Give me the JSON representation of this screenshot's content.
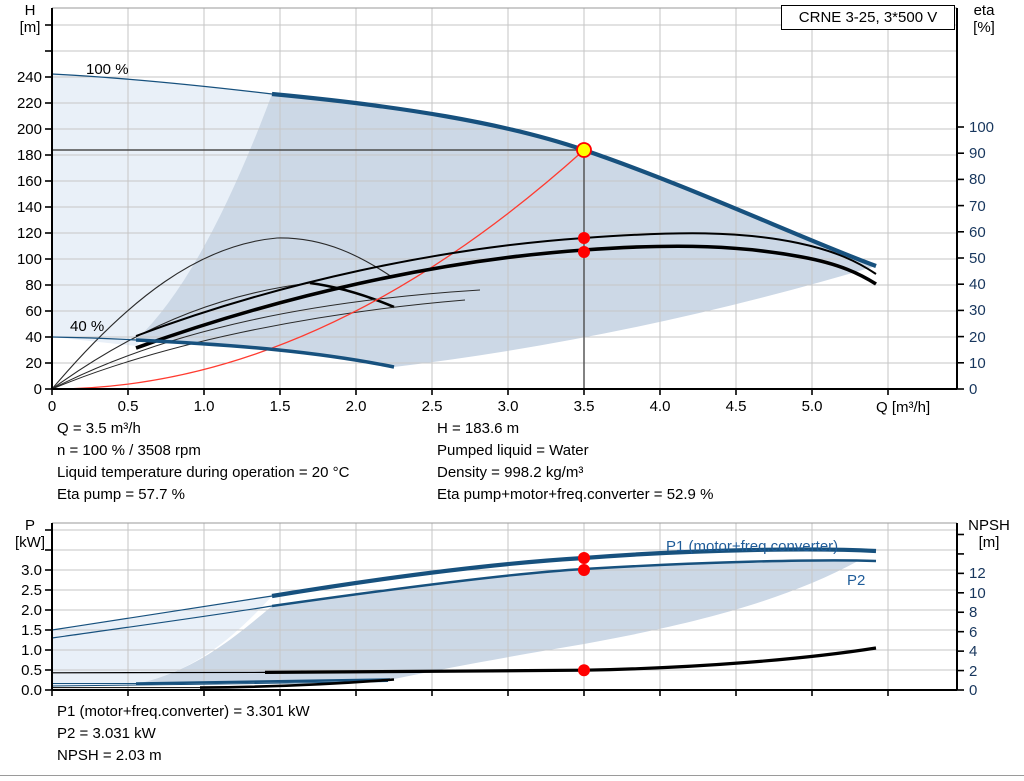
{
  "title_box": {
    "label": "CRNE 3-25, 3*500 V"
  },
  "colors": {
    "curve_blue": "#17517E",
    "label_blue": "#1F5C99",
    "right_axis_numbers": "#17365D",
    "shade_light": "#E9F0F8",
    "shade_dark": "#CCD8E6",
    "marker_red": "#FF0000",
    "marker_yellow": "#FFFF00",
    "system_curve_red": "#FF3B30",
    "crosshair_gray": "#4D4D4D"
  },
  "top_chart": {
    "axis_left": {
      "title": "H",
      "unit": "[m]"
    },
    "axis_right": {
      "title": "eta",
      "unit": "[%]"
    },
    "axis_x": {
      "unit_label": "Q [m³/h]"
    },
    "curve_labels": {
      "full_speed": "100 %",
      "min_speed": "40 %"
    },
    "h_ticks": [
      [
        0,
        "0"
      ],
      [
        20,
        "20"
      ],
      [
        40,
        "40"
      ],
      [
        60,
        "60"
      ],
      [
        80,
        "80"
      ],
      [
        100,
        "100"
      ],
      [
        120,
        "120"
      ],
      [
        140,
        "140"
      ],
      [
        160,
        "160"
      ],
      [
        180,
        "180"
      ],
      [
        200,
        "200"
      ],
      [
        220,
        "220"
      ],
      [
        240,
        "240"
      ],
      [
        260,
        ""
      ],
      [
        280,
        ""
      ]
    ],
    "eta_ticks": [
      [
        0,
        "0"
      ],
      [
        10,
        "10"
      ],
      [
        20,
        "20"
      ],
      [
        30,
        "30"
      ],
      [
        40,
        "40"
      ],
      [
        50,
        "50"
      ],
      [
        60,
        "60"
      ],
      [
        70,
        "70"
      ],
      [
        80,
        "80"
      ],
      [
        90,
        "90"
      ],
      [
        100,
        "100"
      ]
    ],
    "x_ticks": [
      [
        0,
        "0"
      ],
      [
        0.5,
        "0.5"
      ],
      [
        1,
        "1.0"
      ],
      [
        1.5,
        "1.5"
      ],
      [
        2,
        "2.0"
      ],
      [
        2.5,
        "2.5"
      ],
      [
        3,
        "3.0"
      ],
      [
        3.5,
        "3.5"
      ],
      [
        4,
        "4.0"
      ],
      [
        4.5,
        "4.5"
      ],
      [
        5,
        "5.0"
      ],
      [
        5.5,
        ""
      ]
    ]
  },
  "bottom_chart": {
    "axis_left": {
      "title": "P",
      "unit": "[kW]"
    },
    "axis_right": {
      "title": "NPSH",
      "unit": "[m]"
    },
    "labels": {
      "p1": "P1 (motor+freq.converter)",
      "p2": "P2"
    },
    "p_ticks": [
      [
        0,
        "0.0"
      ],
      [
        0.5,
        "0.5"
      ],
      [
        1,
        "1.0"
      ],
      [
        1.5,
        "1.5"
      ],
      [
        2,
        "2.0"
      ],
      [
        2.5,
        "2.5"
      ],
      [
        3,
        "3.0"
      ],
      [
        3.5,
        ""
      ],
      [
        4,
        ""
      ]
    ],
    "npsh_ticks": [
      [
        0,
        "0"
      ],
      [
        2,
        "2"
      ],
      [
        4,
        "4"
      ],
      [
        6,
        "6"
      ],
      [
        8,
        "8"
      ],
      [
        10,
        "10"
      ],
      [
        12,
        "12"
      ],
      [
        14,
        ""
      ],
      [
        16,
        ""
      ]
    ],
    "x_ticks": [
      [
        0,
        ""
      ],
      [
        0.5,
        ""
      ],
      [
        1,
        ""
      ],
      [
        1.5,
        ""
      ],
      [
        2,
        ""
      ],
      [
        2.5,
        ""
      ],
      [
        3,
        ""
      ],
      [
        3.5,
        ""
      ],
      [
        4,
        ""
      ],
      [
        4.5,
        ""
      ],
      [
        5,
        ""
      ],
      [
        5.5,
        ""
      ]
    ]
  },
  "annotations_top": {
    "left": [
      "Q = 3.5 m³/h",
      "n = 100 % / 3508 rpm",
      "Liquid temperature during operation = 20 °C",
      "Eta pump = 57.7 %"
    ],
    "right": [
      "H = 183.6 m",
      "Pumped liquid = Water",
      "Density = 998.2 kg/m³",
      "Eta pump+motor+freq.converter = 52.9 %"
    ]
  },
  "annotations_bottom": [
    "P1 (motor+freq.converter) = 3.301 kW",
    "P2 = 3.031 kW",
    "NPSH = 2.03 m"
  ],
  "chart_data": [
    {
      "type": "line",
      "title": "CRNE 3-25, 3*500 V",
      "xlabel": "Q [m³/h]",
      "ylabel_left": "H [m]",
      "ylabel_right": "eta [%]",
      "xlim": [
        0,
        5.95
      ],
      "ylim_left": [
        0,
        293
      ],
      "ylim_right": [
        0,
        112
      ],
      "grid": true,
      "series": [
        {
          "name": "H-Q curve 100 %",
          "axis": "left",
          "x": [
            0,
            0.5,
            1.0,
            1.45,
            2.0,
            2.5,
            3.0,
            3.5,
            4.0,
            4.5,
            5.0,
            5.42
          ],
          "y": [
            242,
            238,
            233,
            227,
            217,
            207,
            196,
            183.6,
            168,
            148,
            120,
            95
          ]
        },
        {
          "name": "H-Q curve 40 %",
          "axis": "left",
          "x": [
            0,
            0.55,
            1.0,
            1.5,
            2.0,
            2.25
          ],
          "y": [
            40,
            38,
            36,
            32,
            24,
            17
          ]
        },
        {
          "name": "Eta pump",
          "axis": "right",
          "x": [
            0.55,
            1.0,
            1.5,
            2.0,
            2.5,
            3.0,
            3.5,
            4.0,
            4.5,
            5.0,
            5.42
          ],
          "y": [
            20,
            32,
            40,
            46,
            51,
            55,
            57.7,
            58,
            57,
            52,
            44
          ]
        },
        {
          "name": "Eta pump+motor+freq.converter",
          "axis": "right",
          "x": [
            0.55,
            1.0,
            1.5,
            2.0,
            2.5,
            3.0,
            3.5,
            4.0,
            4.5,
            5.0,
            5.42
          ],
          "y": [
            16,
            27,
            35,
            41,
            46,
            50,
            52.9,
            53,
            52,
            47,
            40
          ]
        },
        {
          "name": "System/affinity curve to duty point",
          "axis": "left",
          "x": [
            0,
            1.0,
            2.0,
            3.0,
            3.5
          ],
          "y": [
            0,
            15,
            60,
            135,
            183.6
          ]
        }
      ],
      "operating_point": {
        "Q": 3.5,
        "H": 183.6,
        "eta_pump": 57.7,
        "eta_total": 52.9
      }
    },
    {
      "type": "line",
      "xlabel": "Q [m³/h]",
      "ylabel_left": "P [kW]",
      "ylabel_right": "NPSH [m]",
      "xlim": [
        0,
        5.95
      ],
      "ylim_left": [
        0,
        4.18
      ],
      "ylim_right": [
        0,
        17.2
      ],
      "grid": true,
      "series": [
        {
          "name": "P1 (motor+freq.converter)",
          "axis": "left",
          "x": [
            0,
            1.0,
            1.45,
            2.0,
            2.5,
            3.0,
            3.5,
            4.0,
            4.5,
            5.0,
            5.42
          ],
          "y": [
            1.5,
            2.0,
            2.35,
            2.6,
            2.85,
            3.1,
            3.301,
            3.4,
            3.45,
            3.47,
            3.45
          ]
        },
        {
          "name": "P2",
          "axis": "left",
          "x": [
            0,
            1.0,
            1.45,
            2.0,
            2.5,
            3.0,
            3.5,
            4.0,
            4.5,
            5.0,
            5.42
          ],
          "y": [
            1.3,
            1.8,
            2.1,
            2.4,
            2.65,
            2.85,
            3.031,
            3.15,
            3.25,
            3.3,
            3.28
          ]
        },
        {
          "name": "P 40 %",
          "axis": "left",
          "x": [
            0,
            0.55,
            1.5,
            2.25
          ],
          "y": [
            0.16,
            0.17,
            0.2,
            0.26
          ]
        },
        {
          "name": "NPSH",
          "axis": "right",
          "x": [
            0,
            1.0,
            2.0,
            3.0,
            3.5,
            4.0,
            4.5,
            5.0,
            5.42
          ],
          "y": [
            1.75,
            1.76,
            1.8,
            1.92,
            2.03,
            2.3,
            2.75,
            3.5,
            4.3
          ]
        }
      ],
      "operating_point": {
        "Q": 3.5,
        "P1": 3.301,
        "P2": 3.031,
        "NPSH": 2.03
      }
    }
  ]
}
